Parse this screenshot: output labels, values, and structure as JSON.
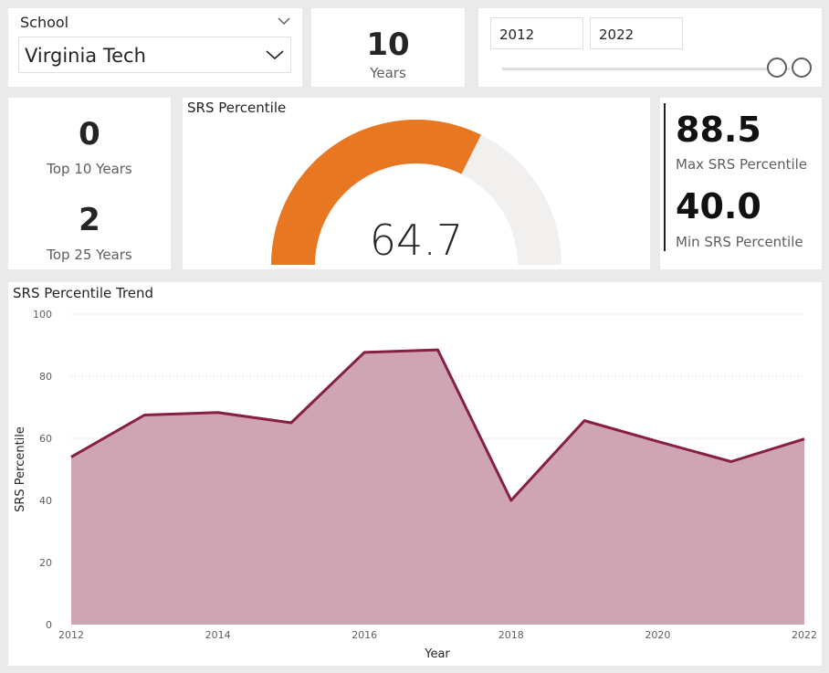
{
  "school_slicer": {
    "title": "School",
    "value": "Virginia Tech"
  },
  "years_card": {
    "value": "10",
    "label": "Years"
  },
  "year_range": {
    "start": "2012",
    "end": "2022"
  },
  "top_years": {
    "top10_value": "0",
    "top10_label": "Top 10 Years",
    "top25_value": "2",
    "top25_label": "Top 25 Years"
  },
  "gauge": {
    "title": "SRS Percentile",
    "value_text": "64.7",
    "value": 64.7,
    "min": 0,
    "max": 100,
    "fill_color": "#E87722",
    "track_color": "#F1F0EF"
  },
  "max_min": {
    "max_value": "88.5",
    "max_label": "Max SRS Percentile",
    "min_value": "40.0",
    "min_label": "Min SRS Percentile"
  },
  "trend": {
    "title": "SRS Percentile Trend"
  },
  "chart_data": {
    "type": "area",
    "title": "SRS Percentile Trend",
    "xlabel": "Year",
    "ylabel": "SRS Percentile",
    "x": [
      2012,
      2013,
      2014,
      2015,
      2016,
      2017,
      2018,
      2019,
      2020,
      2021,
      2022
    ],
    "series": [
      {
        "values": [
          54,
          67.5,
          68.3,
          65,
          87.7,
          88.5,
          40,
          65.7,
          59,
          52.5,
          59.8
        ],
        "color": "#861F41",
        "fill": "#CFA5B3"
      }
    ],
    "xticks": [
      2012,
      2014,
      2016,
      2018,
      2020,
      2022
    ],
    "yticks": [
      0,
      20,
      40,
      60,
      80,
      100
    ],
    "xlim": [
      2012,
      2022
    ],
    "ylim": [
      0,
      100
    ],
    "grid": true
  }
}
